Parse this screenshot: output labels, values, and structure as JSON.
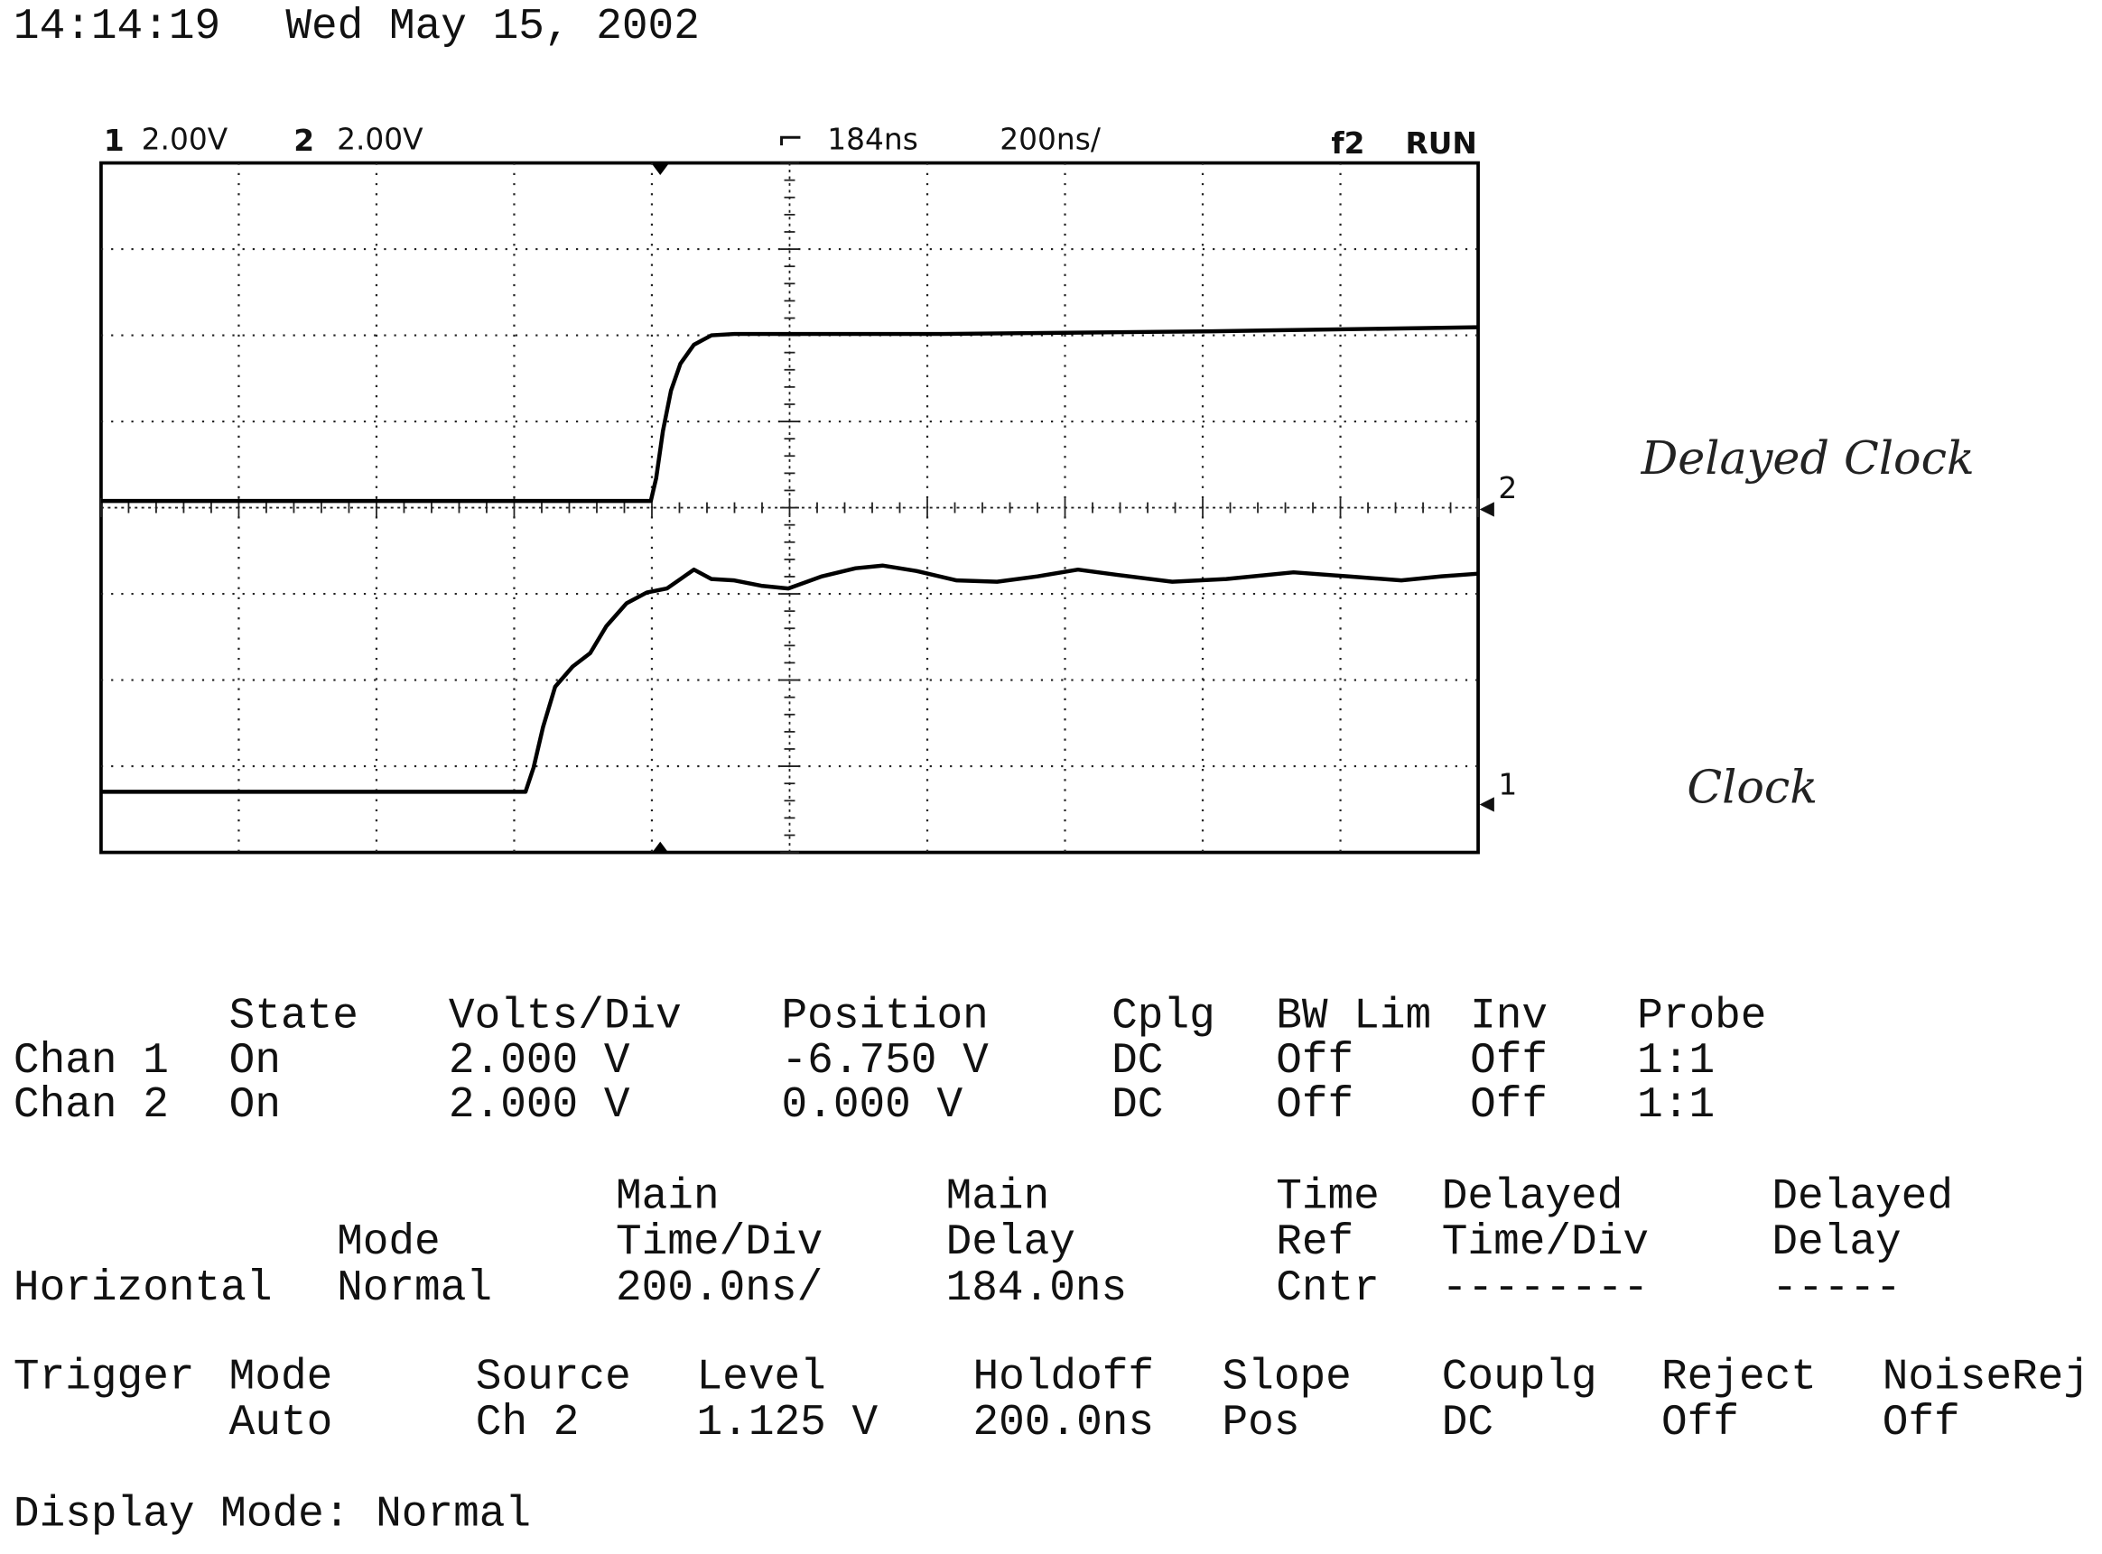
{
  "header": {
    "time": "14:14:19",
    "date": "Wed May 15, 2002"
  },
  "scope": {
    "channels": [
      {
        "number": "1",
        "scale": "2.00V"
      },
      {
        "number": "2",
        "scale": "2.00V"
      }
    ],
    "delay": "184ns",
    "timebase": "200ns/",
    "trigger": "f2",
    "status": "RUN"
  },
  "annotations": [
    "Delayed Clock",
    "Clock"
  ],
  "channel_table": {
    "headers": [
      "State",
      "Volts/Div",
      "Position",
      "Cplg",
      "BW Lim",
      "Inv",
      "Probe"
    ],
    "rows": [
      [
        "Chan 1",
        "On",
        "2.000 V",
        "-6.750 V",
        "DC",
        "Off",
        "Off",
        "1:1"
      ],
      [
        "Chan 2",
        "On",
        "2.000 V",
        "0.000 V",
        "DC",
        "Off",
        "Off",
        "1:1"
      ]
    ]
  },
  "horizontal": {
    "label": "Horizontal",
    "columns": [
      {
        "header": [
          "Mode"
        ],
        "value": "Normal"
      },
      {
        "header": [
          "Main",
          "Time/Div"
        ],
        "value": "200.0ns/"
      },
      {
        "header": [
          "Main",
          "Delay"
        ],
        "value": "184.0ns"
      },
      {
        "header": [
          "Time",
          "Ref"
        ],
        "value": "Cntr"
      },
      {
        "header": [
          "Delayed",
          "Time/Div"
        ],
        "value": "--------"
      },
      {
        "header": [
          "Delayed",
          "Delay"
        ],
        "value": "-----"
      }
    ]
  },
  "trigger": {
    "label": "Trigger",
    "columns": [
      {
        "header": "Mode",
        "value": "Auto"
      },
      {
        "header": "Source",
        "value": "Ch 2"
      },
      {
        "header": "Level",
        "value": "1.125 V"
      },
      {
        "header": "Holdoff",
        "value": "200.0ns"
      },
      {
        "header": "Slope",
        "value": "Pos"
      },
      {
        "header": "Couplg",
        "value": "DC"
      },
      {
        "header": "Reject",
        "value": "Off"
      },
      {
        "header": "NoiseRej",
        "value": "Off"
      }
    ]
  },
  "display": "Display Mode: Normal"
}
